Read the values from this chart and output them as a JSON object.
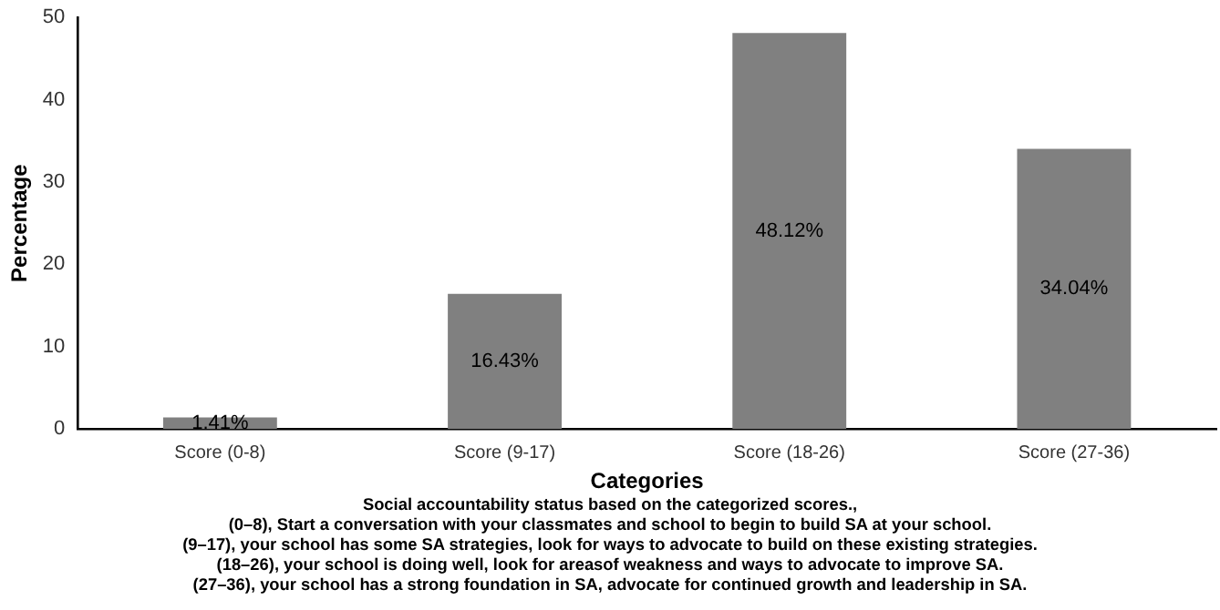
{
  "chart_data": {
    "type": "bar",
    "xlabel": "Categories",
    "ylabel": "Percentage",
    "categories": [
      "Score (0-8)",
      "Score (9-17)",
      "Score (18-26)",
      "Score (27-36)"
    ],
    "values": [
      1.41,
      16.43,
      48.12,
      34.04
    ],
    "value_labels": [
      "1.41%",
      "16.43%",
      "48.12%",
      "34.04%"
    ],
    "color": "#808080",
    "ylim": [
      0,
      50
    ],
    "yticks": [
      0,
      10,
      20,
      30,
      40,
      50
    ],
    "grid": false,
    "legend": false,
    "annotations": [
      "Social accountability status based on the categorized scores.,",
      "(0–8), Start a conversation with your classmates and school to begin to build SA at your school.",
      "(9–17), your school has some SA strategies, look for ways to advocate to build on these existing strategies.",
      "(18–26), your school is doing well, look for areasof weakness and ways to advocate to improve SA.",
      "(27–36), your school has a strong foundation in SA, advocate for continued growth and leadership in SA."
    ]
  }
}
